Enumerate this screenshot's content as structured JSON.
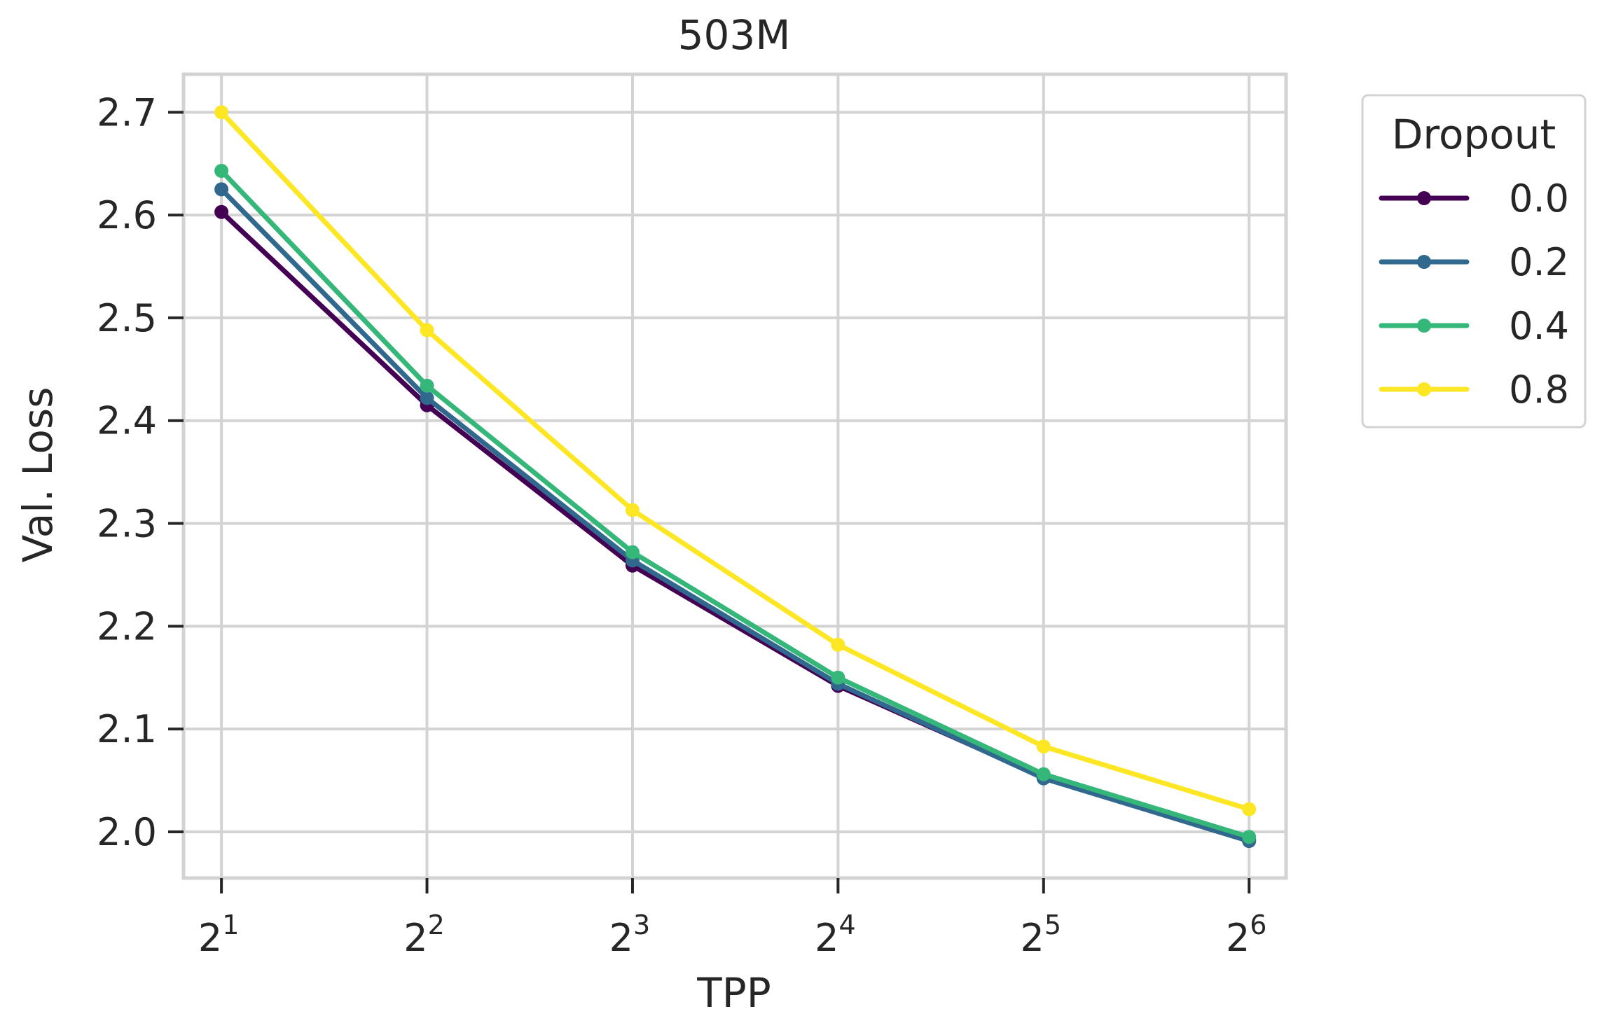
{
  "chart_data": {
    "type": "line",
    "title": "503M",
    "xlabel": "TPP",
    "ylabel": "Val. Loss",
    "x_scale": "log2",
    "x": [
      2,
      4,
      8,
      16,
      32,
      64
    ],
    "x_tick_labels": [
      {
        "base": "2",
        "exp": "1"
      },
      {
        "base": "2",
        "exp": "2"
      },
      {
        "base": "2",
        "exp": "3"
      },
      {
        "base": "2",
        "exp": "4"
      },
      {
        "base": "2",
        "exp": "5"
      },
      {
        "base": "2",
        "exp": "6"
      }
    ],
    "xlim": [
      1.76,
      72.5
    ],
    "ylim": [
      1.955,
      2.737
    ],
    "y_ticks": [
      2.0,
      2.1,
      2.2,
      2.3,
      2.4,
      2.5,
      2.6,
      2.7
    ],
    "y_tick_labels": [
      "2.0",
      "2.1",
      "2.2",
      "2.3",
      "2.4",
      "2.5",
      "2.6",
      "2.7"
    ],
    "grid": true,
    "legend": {
      "title": "Dropout",
      "placement": "outside-right"
    },
    "series": [
      {
        "name": "0.0",
        "color": "#440154",
        "values": [
          2.603,
          2.415,
          2.259,
          2.142,
          2.053,
          1.992
        ]
      },
      {
        "name": "0.2",
        "color": "#31688e",
        "values": [
          2.625,
          2.422,
          2.264,
          2.144,
          2.052,
          1.991
        ]
      },
      {
        "name": "0.4",
        "color": "#35b779",
        "values": [
          2.643,
          2.434,
          2.272,
          2.15,
          2.056,
          1.995
        ]
      },
      {
        "name": "0.8",
        "color": "#fde725",
        "values": [
          2.7,
          2.488,
          2.313,
          2.182,
          2.083,
          2.022
        ]
      }
    ]
  },
  "style": {
    "grid_color": "#d3d3d3",
    "frame_color": "#d3d3d3",
    "text_color": "#262626"
  }
}
